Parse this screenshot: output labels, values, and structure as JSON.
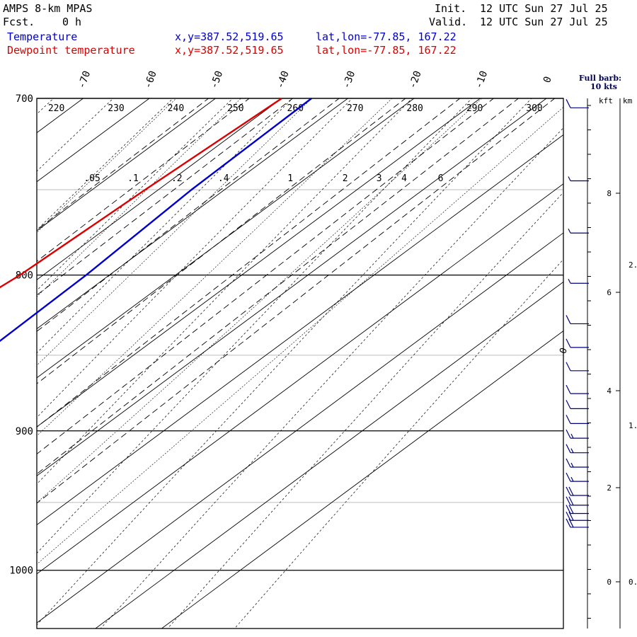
{
  "header": {
    "model": "AMPS 8-km MPAS",
    "fcst_label": "Fcst.",
    "fcst_value": "0 h",
    "init_label": "Init.",
    "init_value": "12 UTC Sun 27 Jul 25",
    "valid_label": "Valid.",
    "valid_value": "12 UTC Sun 27 Jul 25",
    "series": [
      {
        "name": "Temperature",
        "color": "#0000cc",
        "xy": "x,y=387.52,519.65",
        "latlon": "lat,lon=-77.85, 167.22"
      },
      {
        "name": "Dewpoint temperature",
        "color": "#dd0000",
        "xy": "x,y=387.52,519.65",
        "latlon": "lat,lon=-77.85, 167.22"
      }
    ]
  },
  "wind_key": {
    "line1": "Full barb:",
    "line2": "10 kts"
  },
  "chart_data": {
    "type": "line",
    "title": "AMPS 8-km MPAS",
    "pressure_levels": [
      700,
      800,
      900,
      1000
    ],
    "pressure_range": [
      700,
      1045
    ],
    "temperature_ticks": [
      -70,
      -60,
      -50,
      -40,
      -30,
      -20,
      -10,
      0
    ],
    "theta_labels": [
      220,
      230,
      240,
      250,
      260,
      270,
      280,
      290,
      300
    ],
    "mixing_ratio_labels": [
      ".05",
      ".1",
      ".2",
      ".4",
      "1",
      "2",
      "3",
      "4",
      "6"
    ],
    "height_kft_ticks": [
      0,
      2,
      4,
      6,
      8
    ],
    "height_km_ticks": [
      0,
      1,
      2
    ],
    "series": [
      {
        "name": "Temperature",
        "color": "#0000cc",
        "points": [
          [
            700,
            -35.5
          ],
          [
            750,
            -35.0
          ],
          [
            800,
            -33.5
          ],
          [
            850,
            -33.0
          ],
          [
            880,
            -34.5
          ],
          [
            900,
            -36.0
          ],
          [
            925,
            -39.5
          ],
          [
            950,
            -44.5
          ],
          [
            967,
            -48.0
          ]
        ]
      },
      {
        "name": "Dewpoint temperature",
        "color": "#dd0000",
        "points": [
          [
            700,
            -40.0
          ],
          [
            750,
            -42.0
          ],
          [
            800,
            -43.5
          ],
          [
            850,
            -47.0
          ],
          [
            875,
            -49.5
          ],
          [
            900,
            -51.5
          ],
          [
            925,
            -50.5
          ],
          [
            950,
            -51.5
          ],
          [
            967,
            -55.0
          ]
        ]
      }
    ],
    "wind_barbs": [
      {
        "p": 705,
        "speed": 10
      },
      {
        "p": 745,
        "speed": 5
      },
      {
        "p": 775,
        "speed": 5
      },
      {
        "p": 805,
        "speed": 5
      },
      {
        "p": 830,
        "speed": 10
      },
      {
        "p": 845,
        "speed": 10
      },
      {
        "p": 860,
        "speed": 10
      },
      {
        "p": 875,
        "speed": 10
      },
      {
        "p": 885,
        "speed": 10
      },
      {
        "p": 895,
        "speed": 10
      },
      {
        "p": 905,
        "speed": 15
      },
      {
        "p": 915,
        "speed": 15
      },
      {
        "p": 925,
        "speed": 15
      },
      {
        "p": 935,
        "speed": 15
      },
      {
        "p": 945,
        "speed": 20
      },
      {
        "p": 952,
        "speed": 20
      },
      {
        "p": 958,
        "speed": 20
      },
      {
        "p": 963,
        "speed": 20
      },
      {
        "p": 968,
        "speed": 20
      }
    ],
    "zero_isotherm_label": "0"
  }
}
